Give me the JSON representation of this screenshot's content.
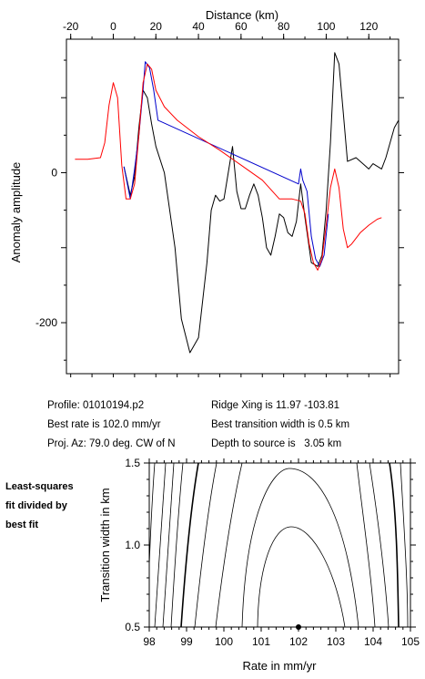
{
  "chart_data": [
    {
      "type": "line",
      "title": "",
      "xlabel": "Distance (km)",
      "ylabel": "Anomaly amplitude",
      "xlim": [
        -22,
        134
      ],
      "ylim": [
        -268,
        178
      ],
      "x_ticks": [
        -20,
        0,
        20,
        40,
        60,
        80,
        100,
        120
      ],
      "y_ticks": [
        0,
        -200
      ],
      "grid": false,
      "series": [
        {
          "color": "#000000",
          "points": [
            [
              5,
              8
            ],
            [
              8,
              -30
            ],
            [
              10,
              -5
            ],
            [
              12,
              60
            ],
            [
              14,
              110
            ],
            [
              16,
              100
            ],
            [
              18,
              65
            ],
            [
              20,
              35
            ],
            [
              24,
              0
            ],
            [
              26,
              -40
            ],
            [
              29,
              -100
            ],
            [
              32,
              -195
            ],
            [
              36,
              -240
            ],
            [
              40,
              -220
            ],
            [
              44,
              -120
            ],
            [
              46,
              -50
            ],
            [
              48,
              -30
            ],
            [
              50,
              -38
            ],
            [
              52,
              -35
            ],
            [
              54,
              0
            ],
            [
              56,
              35
            ],
            [
              58,
              -25
            ],
            [
              60,
              -48
            ],
            [
              62,
              -48
            ],
            [
              64,
              -30
            ],
            [
              66,
              -15
            ],
            [
              68,
              -30
            ],
            [
              70,
              -60
            ],
            [
              72,
              -100
            ],
            [
              74,
              -110
            ],
            [
              76,
              -85
            ],
            [
              78,
              -55
            ],
            [
              80,
              -60
            ],
            [
              82,
              -80
            ],
            [
              84,
              -85
            ],
            [
              86,
              -65
            ],
            [
              88,
              -15
            ],
            [
              90,
              -60
            ],
            [
              93,
              -120
            ],
            [
              96,
              -125
            ],
            [
              98,
              -110
            ],
            [
              100,
              -50
            ],
            [
              102,
              40
            ],
            [
              104,
              160
            ],
            [
              106,
              145
            ],
            [
              108,
              80
            ],
            [
              110,
              15
            ],
            [
              114,
              20
            ],
            [
              118,
              10
            ],
            [
              120,
              5
            ],
            [
              122,
              12
            ],
            [
              126,
              5
            ],
            [
              128,
              20
            ],
            [
              132,
              60
            ],
            [
              134,
              70
            ]
          ]
        },
        {
          "color": "#0000cc",
          "points": [
            [
              5,
              8
            ],
            [
              8,
              -35
            ],
            [
              10,
              5
            ],
            [
              12,
              50
            ],
            [
              14,
              110
            ],
            [
              15,
              148
            ],
            [
              17,
              140
            ],
            [
              19,
              110
            ],
            [
              21,
              70
            ],
            [
              87,
              -15
            ],
            [
              88,
              5
            ],
            [
              89,
              -10
            ],
            [
              91,
              -25
            ],
            [
              93,
              -85
            ],
            [
              95,
              -115
            ],
            [
              97,
              -125
            ],
            [
              99,
              -110
            ],
            [
              101,
              -55
            ]
          ]
        },
        {
          "color": "#ff0000",
          "points": [
            [
              -18,
              18
            ],
            [
              -12,
              18
            ],
            [
              -6,
              20
            ],
            [
              -4,
              40
            ],
            [
              -2,
              90
            ],
            [
              0,
              120
            ],
            [
              2,
              100
            ],
            [
              4,
              10
            ],
            [
              6,
              -35
            ],
            [
              8,
              -35
            ],
            [
              10,
              -15
            ],
            [
              12,
              50
            ],
            [
              14,
              120
            ],
            [
              16,
              145
            ],
            [
              18,
              138
            ],
            [
              20,
              110
            ],
            [
              24,
              88
            ],
            [
              30,
              70
            ],
            [
              40,
              48
            ],
            [
              50,
              30
            ],
            [
              60,
              10
            ],
            [
              70,
              -10
            ],
            [
              78,
              -35
            ],
            [
              84,
              -35
            ],
            [
              88,
              -38
            ],
            [
              90,
              -55
            ],
            [
              92,
              -95
            ],
            [
              94,
              -120
            ],
            [
              96,
              -130
            ],
            [
              98,
              -115
            ],
            [
              100,
              -70
            ],
            [
              102,
              -20
            ],
            [
              104,
              5
            ],
            [
              106,
              -20
            ],
            [
              108,
              -75
            ],
            [
              110,
              -100
            ],
            [
              112,
              -95
            ],
            [
              116,
              -80
            ],
            [
              120,
              -70
            ],
            [
              124,
              -62
            ],
            [
              126,
              -60
            ]
          ]
        }
      ]
    },
    {
      "type": "contour",
      "title": "",
      "xlabel": "Rate in mm/yr",
      "ylabel": "Transition width in km",
      "xlim": [
        98,
        105
      ],
      "ylim": [
        0.5,
        1.5
      ],
      "x_ticks": [
        98,
        99,
        100,
        101,
        102,
        103,
        104,
        105
      ],
      "y_ticks": [
        0.5,
        1.0,
        1.5
      ],
      "best_fit_marker": [
        102.0,
        0.5
      ],
      "grid": false
    }
  ],
  "info": {
    "profile": "Profile: 01010194.p2",
    "best_rate": "Best rate is 102.0 mm/yr",
    "proj_az": "Proj. Az: 79.0 deg. CW of N",
    "ridge_xing": "Ridge Xing is 11.97 -103.81",
    "best_width": "Best transition width is 0.5 km",
    "depth": "Depth to source is   3.05 km"
  },
  "side_label": {
    "line1": "Least-squares",
    "line2": "fit divided by",
    "line3": "best fit"
  }
}
